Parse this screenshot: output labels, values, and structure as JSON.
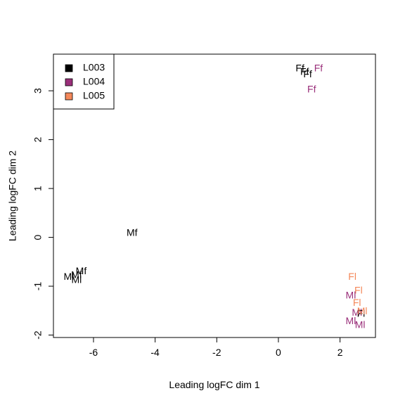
{
  "chart_data": {
    "type": "scatter",
    "title": "",
    "xlabel": "Leading logFC dim 1",
    "ylabel": "Leading logFC dim 2",
    "xlim": [
      -7.3,
      3.15
    ],
    "ylim": [
      -2.05,
      3.75
    ],
    "xticks": [
      -6,
      -4,
      -2,
      0,
      2
    ],
    "yticks": [
      -2,
      -1,
      0,
      1,
      2,
      3
    ],
    "grid": false,
    "legend_position": "top-left",
    "legend": [
      {
        "name": "L003",
        "color": "#000000"
      },
      {
        "name": "L004",
        "color": "#9A2F7A"
      },
      {
        "name": "L005",
        "color": "#F4885A"
      }
    ],
    "points": [
      {
        "x": 0.7,
        "y": 3.45,
        "label": "Ff",
        "group": "L003"
      },
      {
        "x": 0.85,
        "y": 3.38,
        "label": "Ff",
        "group": "L003"
      },
      {
        "x": 0.95,
        "y": 3.33,
        "label": "Ff",
        "group": "L003"
      },
      {
        "x": 1.3,
        "y": 3.45,
        "label": "Ff",
        "group": "L004"
      },
      {
        "x": 1.08,
        "y": 3.02,
        "label": "Ff",
        "group": "L004"
      },
      {
        "x": -4.75,
        "y": 0.08,
        "label": "Mf",
        "group": "L003"
      },
      {
        "x": -6.8,
        "y": -0.82,
        "label": "Ml",
        "group": "L003"
      },
      {
        "x": -6.55,
        "y": -0.88,
        "label": "Ml",
        "group": "L003"
      },
      {
        "x": -6.4,
        "y": -0.7,
        "label": "Mf",
        "group": "L003"
      },
      {
        "x": -6.55,
        "y": -0.78,
        "label": "Mf",
        "group": "L003"
      },
      {
        "x": 2.4,
        "y": -0.82,
        "label": "Fl",
        "group": "L005"
      },
      {
        "x": 2.6,
        "y": -1.1,
        "label": "Fl",
        "group": "L005"
      },
      {
        "x": 2.55,
        "y": -1.35,
        "label": "Fl",
        "group": "L005"
      },
      {
        "x": 2.35,
        "y": -1.2,
        "label": "Ml",
        "group": "L004"
      },
      {
        "x": 2.55,
        "y": -1.55,
        "label": "Ml",
        "group": "L004"
      },
      {
        "x": 2.35,
        "y": -1.72,
        "label": "Ml",
        "group": "L004"
      },
      {
        "x": 2.65,
        "y": -1.8,
        "label": "Ml",
        "group": "L004"
      },
      {
        "x": 2.68,
        "y": -1.57,
        "label": "Fl",
        "group": "L003"
      },
      {
        "x": 2.72,
        "y": -1.52,
        "label": "Ml",
        "group": "L005"
      }
    ]
  }
}
